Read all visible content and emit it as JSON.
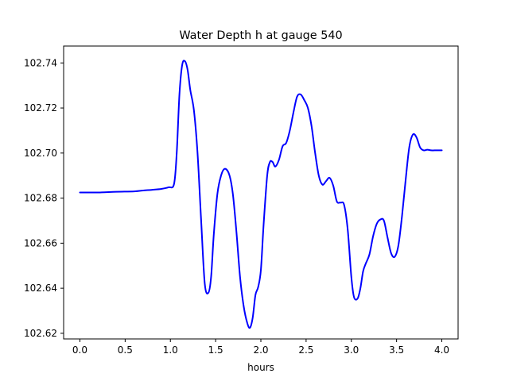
{
  "chart_data": {
    "type": "line",
    "title": "Water Depth h at gauge 540",
    "xlabel": "hours",
    "ylabel": "",
    "xlim": [
      -0.18,
      4.18
    ],
    "ylim": [
      102.6175,
      102.7475
    ],
    "xticks": [
      0.0,
      0.5,
      1.0,
      1.5,
      2.0,
      2.5,
      3.0,
      3.5,
      4.0
    ],
    "xtick_labels": [
      "0.0",
      "0.5",
      "1.0",
      "1.5",
      "2.0",
      "2.5",
      "3.0",
      "3.5",
      "4.0"
    ],
    "yticks": [
      102.62,
      102.64,
      102.66,
      102.68,
      102.7,
      102.72,
      102.74
    ],
    "ytick_labels": [
      "102.62",
      "102.64",
      "102.66",
      "102.68",
      "102.70",
      "102.72",
      "102.74"
    ],
    "grid": false,
    "color": "#0000ff",
    "series": [
      {
        "x": [
          0.0,
          0.2,
          0.4,
          0.6,
          0.7,
          0.8,
          0.9,
          0.98,
          1.04,
          1.07,
          1.1,
          1.13,
          1.16,
          1.19,
          1.22,
          1.26,
          1.3,
          1.34,
          1.38,
          1.42,
          1.45,
          1.48,
          1.52,
          1.56,
          1.6,
          1.65,
          1.69,
          1.73,
          1.77,
          1.81,
          1.85,
          1.88,
          1.91,
          1.94,
          1.97,
          2.0,
          2.03,
          2.07,
          2.1,
          2.13,
          2.16,
          2.2,
          2.24,
          2.28,
          2.32,
          2.36,
          2.4,
          2.44,
          2.48,
          2.52,
          2.56,
          2.6,
          2.64,
          2.68,
          2.72,
          2.76,
          2.8,
          2.84,
          2.88,
          2.92,
          2.96,
          3.0,
          3.03,
          3.07,
          3.1,
          3.13,
          3.16,
          3.2,
          3.24,
          3.28,
          3.32,
          3.36,
          3.4,
          3.44,
          3.48,
          3.52,
          3.56,
          3.6,
          3.64,
          3.68,
          3.72,
          3.76,
          3.8,
          3.84,
          3.88,
          3.92,
          3.96,
          4.0
        ],
        "y": [
          102.6825,
          102.6825,
          102.6828,
          102.683,
          102.6834,
          102.6837,
          102.6841,
          102.6848,
          102.6862,
          102.7,
          102.726,
          102.739,
          102.7408,
          102.737,
          102.728,
          102.719,
          102.7,
          102.67,
          102.642,
          102.638,
          102.645,
          102.664,
          102.682,
          102.69,
          102.693,
          102.6905,
          102.682,
          102.665,
          102.645,
          102.632,
          102.6245,
          102.6225,
          102.627,
          102.637,
          102.6405,
          102.648,
          102.668,
          102.69,
          102.696,
          102.696,
          102.694,
          102.697,
          102.703,
          102.7045,
          102.71,
          102.718,
          102.725,
          102.726,
          102.7235,
          102.72,
          102.712,
          102.7,
          102.69,
          102.686,
          102.6875,
          102.689,
          102.6855,
          102.6785,
          102.678,
          102.677,
          102.666,
          102.645,
          102.636,
          102.6355,
          102.64,
          102.6475,
          102.651,
          102.655,
          102.663,
          102.6685,
          102.6705,
          102.67,
          102.6625,
          102.6555,
          102.654,
          102.659,
          102.672,
          102.688,
          102.7025,
          102.7082,
          102.707,
          102.7025,
          102.7012,
          102.7015,
          102.7012,
          102.7012,
          102.7012,
          102.7012
        ]
      }
    ]
  }
}
